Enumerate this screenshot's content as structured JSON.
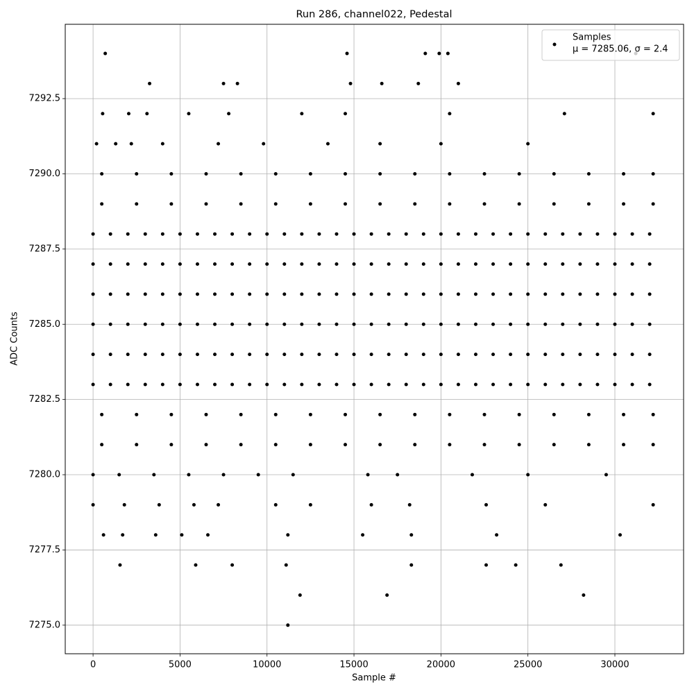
{
  "chart_data": {
    "type": "scatter",
    "title": "Run 286, channel022, Pedestal",
    "x_label": "Sample #",
    "y_label": "ADC Counts",
    "xlim": [
      -1600,
      33950
    ],
    "ylim": [
      7274.05,
      7294.97
    ],
    "xticks": [
      0,
      5000,
      10000,
      15000,
      20000,
      25000,
      30000
    ],
    "yticks": [
      {
        "value": 7275,
        "label": "7275.0"
      },
      {
        "value": 7277.5,
        "label": "7277.5"
      },
      {
        "value": 7280,
        "label": "7280.0"
      },
      {
        "value": 7282.5,
        "label": "7282.5"
      },
      {
        "value": 7285,
        "label": "7285.0"
      },
      {
        "value": 7287.5,
        "label": "7287.5"
      },
      {
        "value": 7290,
        "label": "7290.0"
      },
      {
        "value": 7292.5,
        "label": "7292.5"
      }
    ],
    "grid": true,
    "legend_position": "upper right",
    "legend_note": "μ = 7285.06, σ = 2.4",
    "x": [
      0,
      1000,
      2000,
      3000,
      4000,
      5000,
      6000,
      7000,
      8000,
      9000,
      10000,
      11000,
      12000,
      13000,
      14000,
      15000,
      16000,
      17000,
      18000,
      19000,
      20000,
      21000,
      22000,
      23000,
      24000,
      25000,
      26000,
      27000,
      28000,
      29000,
      30000,
      31000,
      32000,
      0,
      1000,
      2000,
      3000,
      4000,
      5000,
      6000,
      7000,
      8000,
      9000,
      10000,
      11000,
      12000,
      13000,
      14000,
      15000,
      16000,
      17000,
      18000,
      19000,
      20000,
      21000,
      22000,
      23000,
      24000,
      25000,
      26000,
      27000,
      28000,
      29000,
      30000,
      31000,
      32000,
      0,
      1000,
      2000,
      3000,
      4000,
      5000,
      6000,
      7000,
      8000,
      9000,
      10000,
      11000,
      12000,
      13000,
      14000,
      15000,
      16000,
      17000,
      18000,
      19000,
      20000,
      21000,
      22000,
      23000,
      24000,
      25000,
      26000,
      27000,
      28000,
      29000,
      30000,
      31000,
      32000,
      0,
      1000,
      2000,
      3000,
      4000,
      5000,
      6000,
      7000,
      8000,
      9000,
      10000,
      11000,
      12000,
      13000,
      14000,
      15000,
      16000,
      17000,
      18000,
      19000,
      20000,
      21000,
      22000,
      23000,
      24000,
      25000,
      26000,
      27000,
      28000,
      29000,
      30000,
      31000,
      32000,
      0,
      1000,
      2000,
      3000,
      4000,
      5000,
      6000,
      7000,
      8000,
      9000,
      10000,
      11000,
      12000,
      13000,
      14000,
      15000,
      16000,
      17000,
      18000,
      19000,
      20000,
      21000,
      22000,
      23000,
      24000,
      25000,
      26000,
      27000,
      28000,
      29000,
      30000,
      31000,
      32000,
      0,
      1000,
      2000,
      3000,
      4000,
      5000,
      6000,
      7000,
      8000,
      9000,
      10000,
      11000,
      12000,
      13000,
      14000,
      15000,
      16000,
      17000,
      18000,
      19000,
      20000,
      21000,
      22000,
      23000,
      24000,
      25000,
      26000,
      27000,
      28000,
      29000,
      30000,
      31000,
      32000,
      500,
      2500,
      4500,
      6500,
      8500,
      10500,
      12500,
      14500,
      16500,
      18500,
      20500,
      22500,
      24500,
      26500,
      28500,
      30500,
      32200,
      500,
      2500,
      4500,
      6500,
      8500,
      10500,
      12500,
      14500,
      16500,
      18500,
      20500,
      22500,
      24500,
      26500,
      28500,
      30500,
      32200,
      500,
      2500,
      4500,
      6500,
      8500,
      10500,
      12500,
      14500,
      16500,
      18500,
      20500,
      22500,
      24500,
      26500,
      28500,
      30500,
      32200,
      500,
      2500,
      4500,
      6500,
      8500,
      10500,
      12500,
      14500,
      16500,
      18500,
      20500,
      22500,
      24500,
      26500,
      28500,
      30500,
      32200,
      0,
      1500,
      3500,
      5500,
      7500,
      9500,
      11500,
      15800,
      17500,
      21800,
      25000,
      29500,
      0,
      1800,
      3800,
      5800,
      7200,
      10500,
      12500,
      16000,
      18200,
      22600,
      26000,
      32200,
      600,
      1700,
      3600,
      5100,
      6600,
      11200,
      15500,
      18300,
      23200,
      30300,
      1550,
      5900,
      8000,
      11100,
      18300,
      22600,
      24300,
      26900,
      11900,
      16900,
      28200,
      11200,
      200,
      1300,
      2200,
      4000,
      7200,
      9800,
      13500,
      16500,
      20000,
      25000,
      550,
      2050,
      3100,
      5500,
      7800,
      12000,
      14500,
      20500,
      27100,
      32200,
      3250,
      7500,
      8300,
      14800,
      16600,
      18700,
      21000,
      700,
      14600,
      19100,
      19900,
      20400,
      31200
    ],
    "series": [
      {
        "name": "Samples",
        "color": "#000000",
        "values": [
          7283,
          7283,
          7283,
          7283,
          7283,
          7283,
          7283,
          7283,
          7283,
          7283,
          7283,
          7283,
          7283,
          7283,
          7283,
          7283,
          7283,
          7283,
          7283,
          7283,
          7283,
          7283,
          7283,
          7283,
          7283,
          7283,
          7283,
          7283,
          7283,
          7283,
          7283,
          7283,
          7283,
          7284,
          7284,
          7284,
          7284,
          7284,
          7284,
          7284,
          7284,
          7284,
          7284,
          7284,
          7284,
          7284,
          7284,
          7284,
          7284,
          7284,
          7284,
          7284,
          7284,
          7284,
          7284,
          7284,
          7284,
          7284,
          7284,
          7284,
          7284,
          7284,
          7284,
          7284,
          7284,
          7284,
          7285,
          7285,
          7285,
          7285,
          7285,
          7285,
          7285,
          7285,
          7285,
          7285,
          7285,
          7285,
          7285,
          7285,
          7285,
          7285,
          7285,
          7285,
          7285,
          7285,
          7285,
          7285,
          7285,
          7285,
          7285,
          7285,
          7285,
          7285,
          7285,
          7285,
          7285,
          7285,
          7285,
          7286,
          7286,
          7286,
          7286,
          7286,
          7286,
          7286,
          7286,
          7286,
          7286,
          7286,
          7286,
          7286,
          7286,
          7286,
          7286,
          7286,
          7286,
          7286,
          7286,
          7286,
          7286,
          7286,
          7286,
          7286,
          7286,
          7286,
          7286,
          7286,
          7286,
          7286,
          7286,
          7286,
          7287,
          7287,
          7287,
          7287,
          7287,
          7287,
          7287,
          7287,
          7287,
          7287,
          7287,
          7287,
          7287,
          7287,
          7287,
          7287,
          7287,
          7287,
          7287,
          7287,
          7287,
          7287,
          7287,
          7287,
          7287,
          7287,
          7287,
          7287,
          7287,
          7287,
          7287,
          7287,
          7287,
          7288,
          7288,
          7288,
          7288,
          7288,
          7288,
          7288,
          7288,
          7288,
          7288,
          7288,
          7288,
          7288,
          7288,
          7288,
          7288,
          7288,
          7288,
          7288,
          7288,
          7288,
          7288,
          7288,
          7288,
          7288,
          7288,
          7288,
          7288,
          7288,
          7288,
          7288,
          7288,
          7288,
          7282,
          7282,
          7282,
          7282,
          7282,
          7282,
          7282,
          7282,
          7282,
          7282,
          7282,
          7282,
          7282,
          7282,
          7282,
          7282,
          7282,
          7289,
          7289,
          7289,
          7289,
          7289,
          7289,
          7289,
          7289,
          7289,
          7289,
          7289,
          7289,
          7289,
          7289,
          7289,
          7289,
          7289,
          7290,
          7290,
          7290,
          7290,
          7290,
          7290,
          7290,
          7290,
          7290,
          7290,
          7290,
          7290,
          7290,
          7290,
          7290,
          7290,
          7290,
          7281,
          7281,
          7281,
          7281,
          7281,
          7281,
          7281,
          7281,
          7281,
          7281,
          7281,
          7281,
          7281,
          7281,
          7281,
          7281,
          7281,
          7280,
          7280,
          7280,
          7280,
          7280,
          7280,
          7280,
          7280,
          7280,
          7280,
          7280,
          7280,
          7279,
          7279,
          7279,
          7279,
          7279,
          7279,
          7279,
          7279,
          7279,
          7279,
          7279,
          7279,
          7278,
          7278,
          7278,
          7278,
          7278,
          7278,
          7278,
          7278,
          7278,
          7278,
          7277,
          7277,
          7277,
          7277,
          7277,
          7277,
          7277,
          7277,
          7276,
          7276,
          7276,
          7275,
          7291,
          7291,
          7291,
          7291,
          7291,
          7291,
          7291,
          7291,
          7291,
          7291,
          7292,
          7292,
          7292,
          7292,
          7292,
          7292,
          7292,
          7292,
          7292,
          7292,
          7293,
          7293,
          7293,
          7293,
          7293,
          7293,
          7293,
          7294,
          7294,
          7294,
          7294,
          7294,
          7294
        ]
      }
    ]
  }
}
